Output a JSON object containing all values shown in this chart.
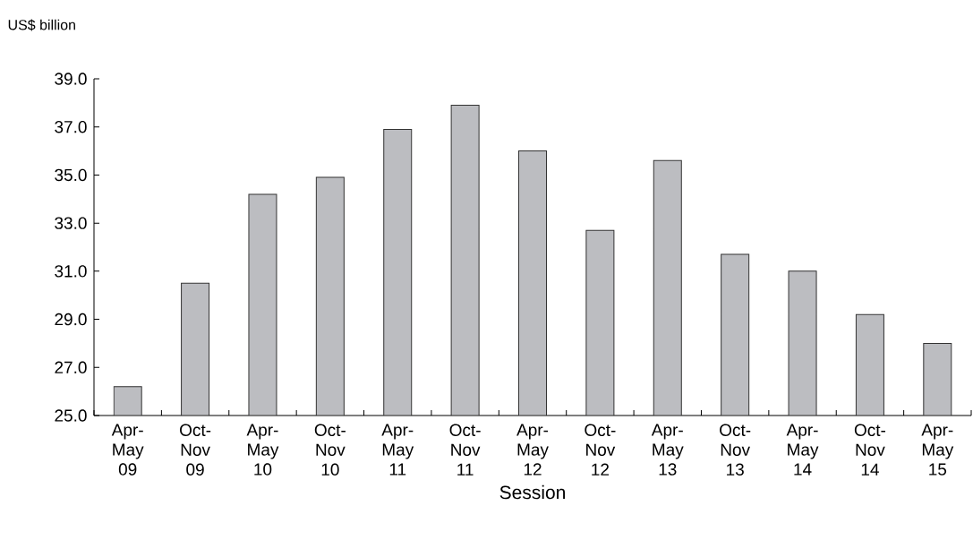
{
  "chart_data": {
    "type": "bar",
    "ylabel": "US$ billion",
    "xlabel": "Session",
    "categories": [
      "Apr-May 09",
      "Oct-Nov 09",
      "Apr-May 10",
      "Oct-Nov 10",
      "Apr-May 11",
      "Oct-Nov 11",
      "Apr-May 12",
      "Oct-Nov 12",
      "Apr-May 13",
      "Oct-Nov 13",
      "Apr-May 14",
      "Oct-Nov 14",
      "Apr-May 15"
    ],
    "values": [
      26.2,
      30.5,
      34.2,
      34.9,
      36.9,
      37.9,
      36.0,
      32.7,
      35.6,
      31.7,
      31.0,
      29.2,
      28.0
    ],
    "color": "#bcbdc1",
    "ylim": [
      25,
      39
    ],
    "yticks": [
      {
        "value": 25,
        "label": "25.0"
      },
      {
        "value": 27,
        "label": "27.0"
      },
      {
        "value": 29,
        "label": "29.0"
      },
      {
        "value": 31,
        "label": "31.0"
      },
      {
        "value": 33,
        "label": "33.0"
      },
      {
        "value": 35,
        "label": "35.0"
      },
      {
        "value": 37,
        "label": "37.0"
      },
      {
        "value": 39,
        "label": "39.0"
      }
    ],
    "grid": false
  }
}
